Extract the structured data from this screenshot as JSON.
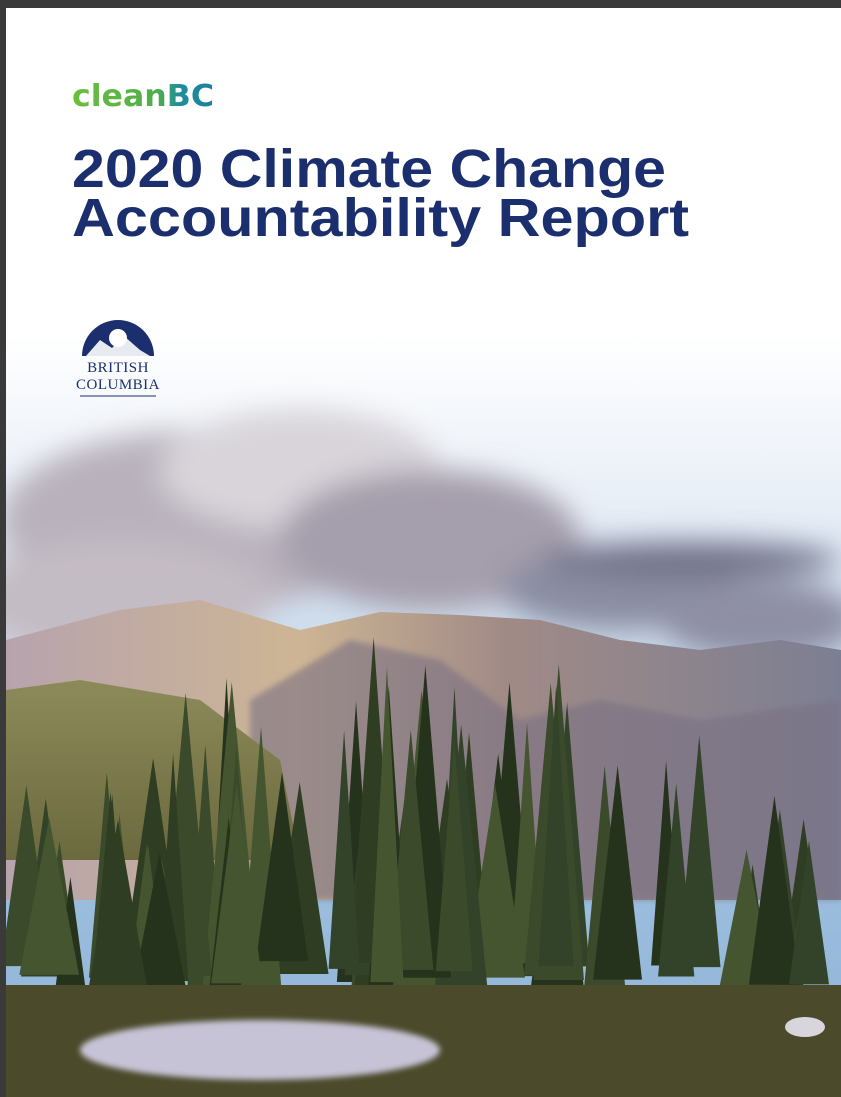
{
  "logo": {
    "brand": "cleanBC"
  },
  "title": {
    "line1": "2020 Climate Change",
    "line2": "Accountability Report"
  },
  "crest": {
    "line1": "BRITISH",
    "line2": "COLUMBIA"
  }
}
